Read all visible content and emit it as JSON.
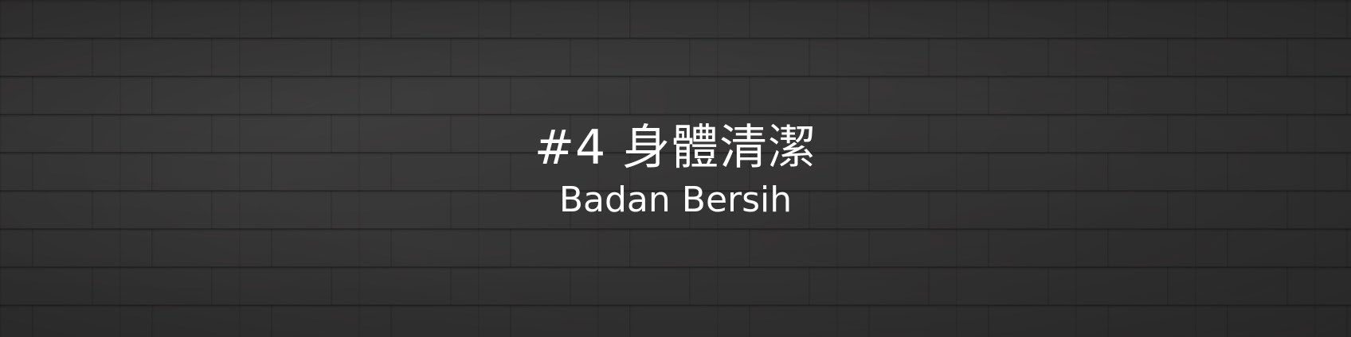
{
  "banner": {
    "title": "#4 身體清潔",
    "subtitle": "Badan Bersih",
    "background": "dark-brick-wall",
    "colors": {
      "background": "#363535",
      "text": "#ffffff"
    }
  }
}
